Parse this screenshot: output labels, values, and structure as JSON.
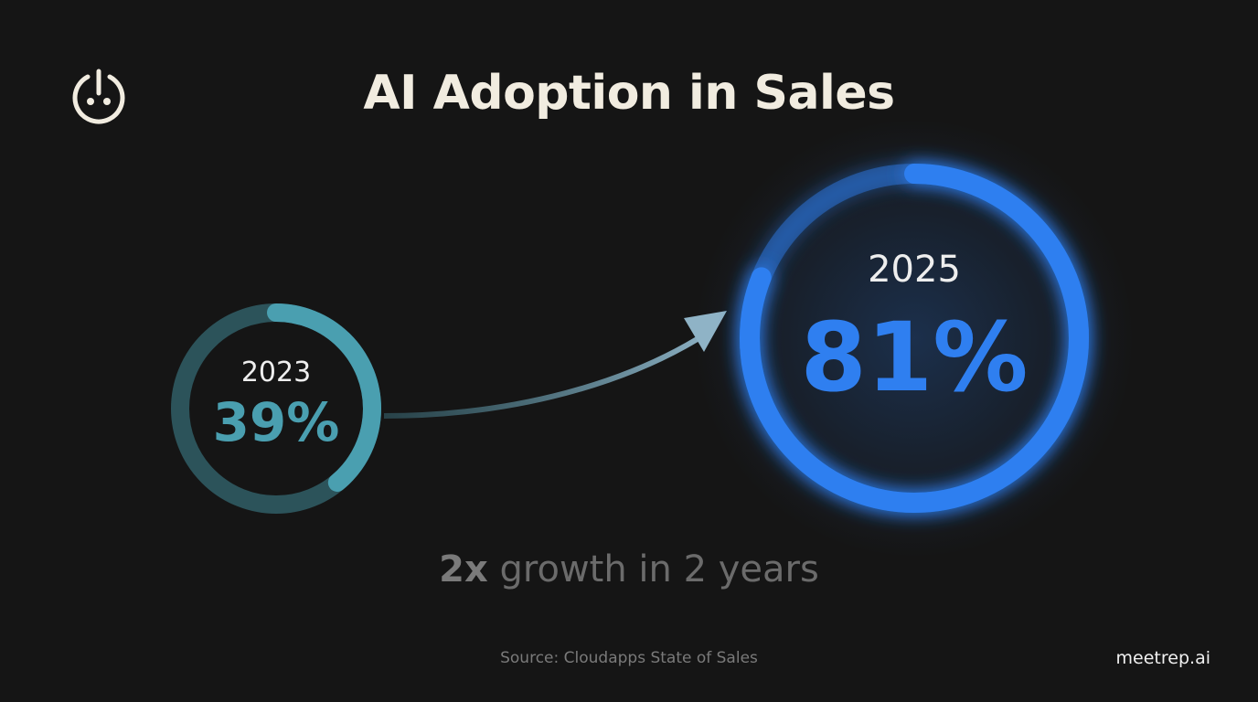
{
  "header": {
    "title": "AI Adoption in Sales",
    "logo_icon": "power-plug-icon"
  },
  "chart_data": {
    "type": "progress-ring",
    "title": "AI Adoption in Sales",
    "series": [
      {
        "year": "2023",
        "label": "39%",
        "value": 39,
        "color": "#4a9fb0"
      },
      {
        "year": "2025",
        "label": "81%",
        "value": 81,
        "color": "#2f7ff0"
      }
    ],
    "annotation": "arrow from 2023 to 2025"
  },
  "footer": {
    "growth_bold": "2x",
    "growth_rest": " growth in 2 years",
    "source": "Source: Cloudapps State of Sales",
    "brand": "meetrep.ai"
  }
}
